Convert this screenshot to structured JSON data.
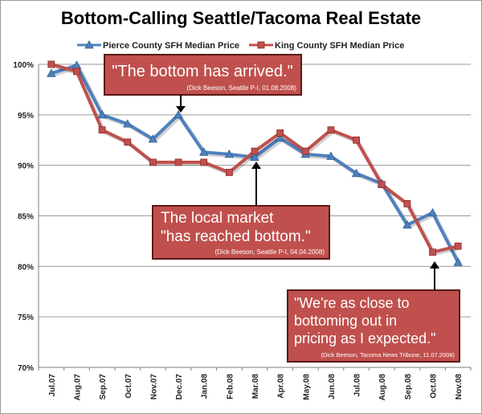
{
  "chart_data": {
    "type": "line",
    "title": "Bottom-Calling Seattle/Tacoma Real Estate",
    "categories": [
      "Jul.07",
      "Aug.07",
      "Sep.07",
      "Oct.07",
      "Nov.07",
      "Dec.07",
      "Jan.08",
      "Feb.08",
      "Mar.08",
      "Apr.08",
      "May.08",
      "Jun.08",
      "Jul.08",
      "Aug.08",
      "Sep.08",
      "Oct.08",
      "Nov.08"
    ],
    "y_ticks": [
      "100%",
      "95%",
      "90%",
      "85%",
      "80%",
      "75%",
      "70%"
    ],
    "ylim": [
      70,
      100
    ],
    "legend_position": "top",
    "grid": true,
    "series": [
      {
        "name": "Pierce County SFH Median Price",
        "color": "#4f81bd",
        "marker": "triangle",
        "values": [
          99.1,
          99.9,
          95.0,
          94.1,
          92.6,
          95.0,
          91.3,
          91.1,
          90.8,
          92.7,
          91.1,
          90.9,
          89.2,
          88.2,
          84.1,
          85.3,
          80.4
        ]
      },
      {
        "name": "King County SFH Median Price",
        "color": "#c0504d",
        "marker": "square",
        "values": [
          100.0,
          99.3,
          93.5,
          92.3,
          90.3,
          90.3,
          90.3,
          89.3,
          91.4,
          93.2,
          91.4,
          93.5,
          92.5,
          88.1,
          86.2,
          81.4,
          82.0
        ]
      }
    ],
    "annotations": [
      {
        "quote": "\"The bottom has arrived.\"",
        "source": "(Dick Beeson, Seattle P-I, 01.08.2008)",
        "points_to": "Dec.07"
      },
      {
        "quote_lines": [
          "The local market",
          "\"has reached bottom.\""
        ],
        "source": "(Dick Beeson, Seattle P-I, 04.04.2008)",
        "points_to": "Mar.08"
      },
      {
        "quote_lines": [
          "\"We're as close to",
          "bottoming out in",
          "pricing as I expected.\""
        ],
        "source": "(Dick Beeson, Tacoma News Tribune, 11.07.2008)",
        "points_to": "Oct.08"
      }
    ]
  }
}
